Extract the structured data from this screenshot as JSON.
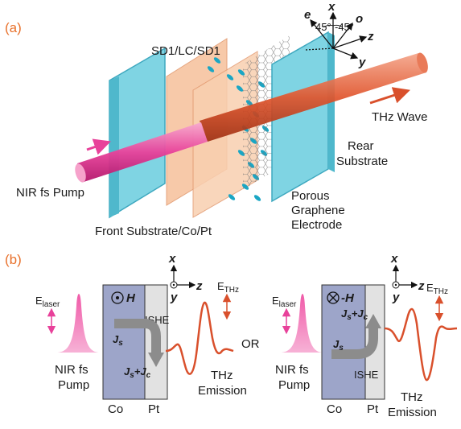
{
  "panels": {
    "a": "(a)",
    "b": "(b)"
  },
  "part_a": {
    "layer_stack": "SD1/LC/SD1",
    "thz_wave": "THz Wave",
    "rear_substrate": [
      "Rear",
      "Substrate"
    ],
    "pump": "NIR fs Pump",
    "graphene": [
      "Porous",
      "Graphene",
      "Electrode"
    ],
    "front_substrate": "Front Substrate/Co/Pt",
    "axes": {
      "e": "e",
      "x": "x",
      "o": "o",
      "z": "z",
      "y": "y",
      "angle1": "45°",
      "angle2": "-45°"
    }
  },
  "part_b": {
    "or": "OR",
    "left": {
      "laser_main": "E",
      "laser_sub": "laser",
      "field": "H",
      "ishe": "ISHE",
      "js_main": "J",
      "js_sub": "s",
      "jsjc_j1": "J",
      "jsjc_s": "s",
      "jsjc_plus": "+",
      "jsjc_j2": "J",
      "jsjc_c": "c",
      "co": "Co",
      "pt": "Pt",
      "ethz_main": "E",
      "ethz_sub": "THz",
      "pump": [
        "NIR fs",
        "Pump"
      ],
      "emission": [
        "THz",
        "Emission"
      ],
      "axes": {
        "x": "x",
        "y": "y",
        "z": "z"
      }
    },
    "right": {
      "laser_main": "E",
      "laser_sub": "laser",
      "field": "-H",
      "ishe": "ISHE",
      "js_main": "J",
      "js_sub": "s",
      "jsjc_j1": "J",
      "jsjc_s": "s",
      "jsjc_plus": "+",
      "jsjc_j2": "J",
      "jsjc_c": "c",
      "co": "Co",
      "pt": "Pt",
      "ethz_main": "E",
      "ethz_sub": "THz",
      "pump": [
        "NIR fs",
        "Pump"
      ],
      "emission": [
        "THz",
        "Emission"
      ],
      "axes": {
        "x": "x",
        "y": "y",
        "z": "z"
      }
    }
  },
  "colors": {
    "orange_label": "#e8702a",
    "pump_pink": "#e8419a",
    "thz_red": "#d9502c",
    "glass": "#7fd4e3",
    "lc_orange": "#f7c4a0",
    "co_block": "#9da5c9",
    "pt_block": "#e2e2e2"
  }
}
